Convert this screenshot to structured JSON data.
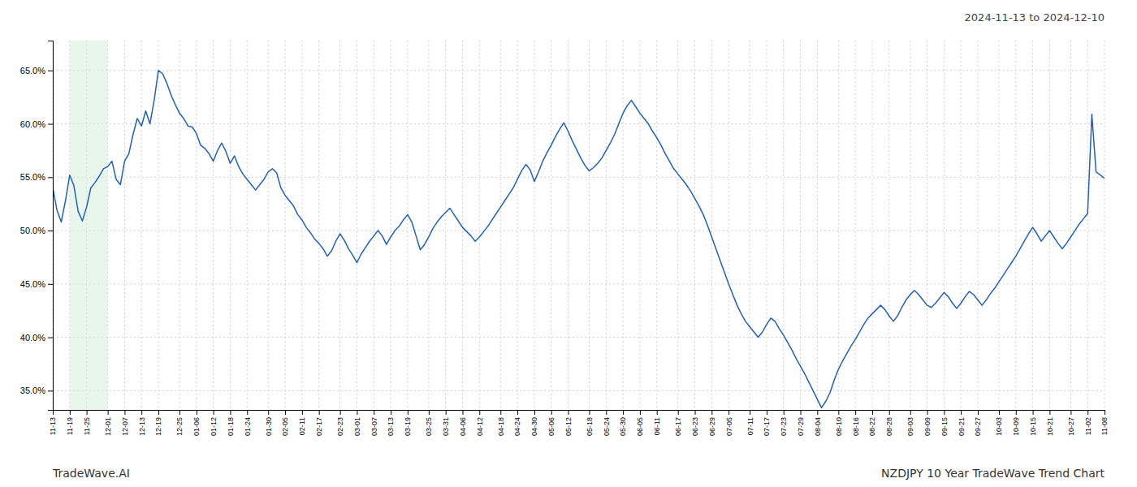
{
  "chart_data": {
    "type": "line",
    "title": "NZDJPY 10 Year TradeWave Trend Chart",
    "subtitle": "2024-11-13 to 2024-12-10",
    "annotations": [
      "TradeWave.AI"
    ],
    "color": "#2060c0",
    "grid": true,
    "highlight": {
      "start": "11-19",
      "end": "12-01",
      "color": "#d4edda"
    },
    "ylim": [
      0.332,
      0.678
    ],
    "yticks": [
      {
        "value": 0.35,
        "label": "35.0%"
      },
      {
        "value": 0.4,
        "label": "40.0%"
      },
      {
        "value": 0.45,
        "label": "45.0%"
      },
      {
        "value": 0.5,
        "label": "50.0%"
      },
      {
        "value": 0.55,
        "label": "55.0%"
      },
      {
        "value": 0.6,
        "label": "60.0%"
      },
      {
        "value": 0.65,
        "label": "65.0%"
      }
    ],
    "categories": [
      "11-13",
      null,
      null,
      null,
      "11-19",
      null,
      null,
      null,
      "11-25",
      null,
      null,
      null,
      null,
      "12-01",
      null,
      null,
      null,
      "12-07",
      null,
      null,
      null,
      "12-13",
      null,
      null,
      null,
      "12-19",
      null,
      null,
      null,
      null,
      "12-25",
      null,
      null,
      null,
      "01-06",
      null,
      null,
      null,
      "01-12",
      null,
      null,
      null,
      "01-18",
      null,
      null,
      null,
      "01-24",
      null,
      null,
      null,
      null,
      "01-30",
      null,
      null,
      null,
      "02-05",
      null,
      null,
      null,
      "02-11",
      null,
      null,
      null,
      "02-17",
      null,
      null,
      null,
      null,
      "02-23",
      null,
      null,
      null,
      "03-01",
      null,
      null,
      null,
      "03-07",
      null,
      null,
      null,
      "03-13",
      null,
      null,
      null,
      "03-19",
      null,
      null,
      null,
      null,
      "03-25",
      null,
      null,
      null,
      "03-31",
      null,
      null,
      null,
      "04-06",
      null,
      null,
      null,
      "04-12",
      null,
      null,
      null,
      null,
      "04-18",
      null,
      null,
      null,
      "04-24",
      null,
      null,
      null,
      "04-30",
      null,
      null,
      null,
      "05-06",
      null,
      null,
      null,
      "05-12",
      null,
      null,
      null,
      null,
      "05-18",
      null,
      null,
      null,
      "05-24",
      null,
      null,
      null,
      "05-30",
      null,
      null,
      null,
      "06-05",
      null,
      null,
      null,
      "06-11",
      null,
      null,
      null,
      null,
      "06-17",
      null,
      null,
      null,
      "06-23",
      null,
      null,
      null,
      "06-29",
      null,
      null,
      null,
      "07-05",
      null,
      null,
      null,
      null,
      "07-11",
      null,
      null,
      null,
      "07-17",
      null,
      null,
      null,
      "07-23",
      null,
      null,
      null,
      "07-29",
      null,
      null,
      null,
      "08-04",
      null,
      null,
      null,
      null,
      "08-10",
      null,
      null,
      null,
      "08-16",
      null,
      null,
      null,
      "08-22",
      null,
      null,
      null,
      "08-28",
      null,
      null,
      null,
      null,
      "09-03",
      null,
      null,
      null,
      "09-09",
      null,
      null,
      null,
      "09-15",
      null,
      null,
      null,
      "09-21",
      null,
      null,
      null,
      "09-27",
      null,
      null,
      null,
      null,
      "10-03",
      null,
      null,
      null,
      "10-09",
      null,
      null,
      null,
      "10-15",
      null,
      null,
      null,
      "10-21",
      null,
      null,
      null,
      null,
      "10-27",
      null,
      null,
      null,
      "11-02",
      null,
      null,
      null,
      "11-08"
    ],
    "values": [
      0.54,
      0.519,
      0.508,
      0.528,
      0.552,
      0.542,
      0.518,
      0.509,
      0.522,
      0.54,
      0.545,
      0.551,
      0.558,
      0.56,
      0.565,
      0.548,
      0.543,
      0.565,
      0.572,
      0.59,
      0.605,
      0.598,
      0.612,
      0.6,
      0.622,
      0.65,
      0.647,
      0.638,
      0.627,
      0.618,
      0.61,
      0.605,
      0.598,
      0.597,
      0.591,
      0.58,
      0.577,
      0.572,
      0.565,
      0.575,
      0.582,
      0.574,
      0.563,
      0.57,
      0.56,
      0.553,
      0.548,
      0.543,
      0.538,
      0.543,
      0.548,
      0.555,
      0.558,
      0.554,
      0.54,
      0.533,
      0.528,
      0.523,
      0.515,
      0.51,
      0.503,
      0.498,
      0.492,
      0.488,
      0.483,
      0.476,
      0.481,
      0.49,
      0.497,
      0.491,
      0.483,
      0.477,
      0.47,
      0.478,
      0.484,
      0.49,
      0.495,
      0.5,
      0.495,
      0.487,
      0.494,
      0.5,
      0.504,
      0.51,
      0.515,
      0.508,
      0.495,
      0.482,
      0.487,
      0.494,
      0.502,
      0.508,
      0.513,
      0.517,
      0.521,
      0.515,
      0.509,
      0.503,
      0.499,
      0.495,
      0.49,
      0.494,
      0.499,
      0.504,
      0.51,
      0.516,
      0.522,
      0.528,
      0.534,
      0.54,
      0.548,
      0.556,
      0.562,
      0.557,
      0.546,
      0.555,
      0.565,
      0.573,
      0.58,
      0.588,
      0.595,
      0.601,
      0.593,
      0.584,
      0.576,
      0.568,
      0.561,
      0.556,
      0.559,
      0.563,
      0.568,
      0.575,
      0.582,
      0.59,
      0.6,
      0.61,
      0.617,
      0.622,
      0.616,
      0.61,
      0.605,
      0.6,
      0.593,
      0.587,
      0.58,
      0.572,
      0.565,
      0.558,
      0.553,
      0.548,
      0.543,
      0.537,
      0.53,
      0.523,
      0.515,
      0.505,
      0.494,
      0.483,
      0.472,
      0.461,
      0.45,
      0.44,
      0.43,
      0.422,
      0.415,
      0.41,
      0.405,
      0.4,
      0.405,
      0.412,
      0.418,
      0.415,
      0.408,
      0.402,
      0.395,
      0.388,
      0.38,
      0.373,
      0.366,
      0.358,
      0.35,
      0.342,
      0.334,
      0.34,
      0.348,
      0.36,
      0.37,
      0.378,
      0.385,
      0.392,
      0.398,
      0.405,
      0.412,
      0.418,
      0.422,
      0.426,
      0.43,
      0.426,
      0.42,
      0.415,
      0.42,
      0.428,
      0.435,
      0.44,
      0.444,
      0.44,
      0.435,
      0.43,
      0.428,
      0.432,
      0.437,
      0.442,
      0.438,
      0.432,
      0.427,
      0.432,
      0.438,
      0.443,
      0.44,
      0.435,
      0.43,
      0.435,
      0.441,
      0.446,
      0.452,
      0.458,
      0.464,
      0.47,
      0.476,
      0.483,
      0.49,
      0.497,
      0.503,
      0.497,
      0.49,
      0.495,
      0.5,
      0.494,
      0.488,
      0.483,
      0.488,
      0.494,
      0.5,
      0.506,
      0.511,
      0.516,
      0.609,
      0.555,
      0.552,
      0.549
    ]
  }
}
